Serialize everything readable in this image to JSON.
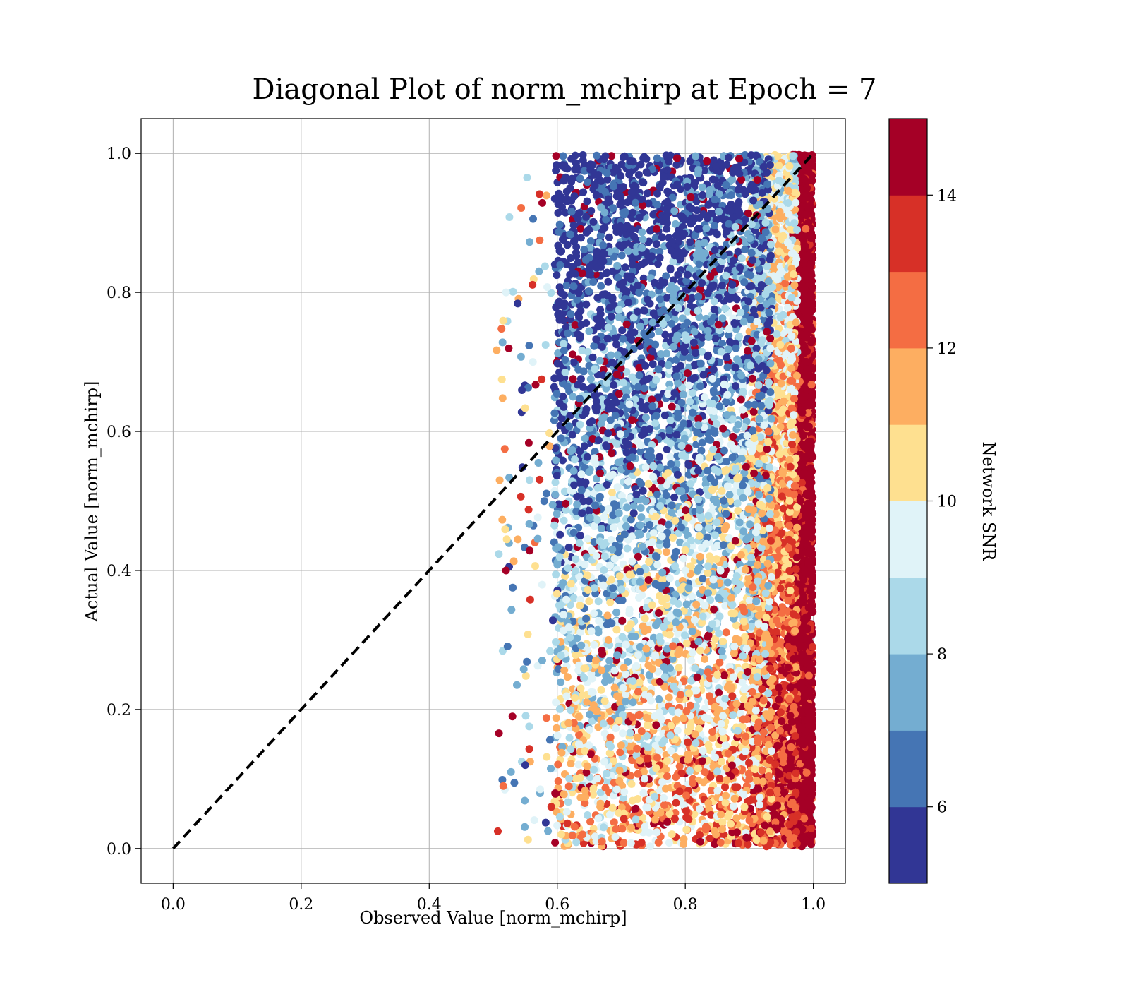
{
  "chart_data": {
    "type": "scatter",
    "title": "Diagonal Plot of norm_mchirp at Epoch = 7",
    "xlabel": "Observed Value [norm_mchirp]",
    "ylabel": "Actual Value [norm_mchirp]",
    "xlim": [
      -0.05,
      1.05
    ],
    "ylim": [
      -0.05,
      1.05
    ],
    "x_ticks": [
      "0.0",
      "0.2",
      "0.4",
      "0.6",
      "0.8",
      "1.0"
    ],
    "y_ticks": [
      "0.0",
      "0.2",
      "0.4",
      "0.6",
      "0.8",
      "1.0"
    ],
    "grid": true,
    "reference_line": {
      "style": "dashed",
      "color": "#000000",
      "from": [
        0.0,
        0.0
      ],
      "to": [
        1.0,
        1.0
      ]
    },
    "colorbar": {
      "label": "Network SNR",
      "range": [
        5,
        15
      ],
      "ticks": [
        "6",
        "8",
        "10",
        "12",
        "14"
      ],
      "levels": [
        {
          "from": 5,
          "to": 6,
          "color": "#313695"
        },
        {
          "from": 6,
          "to": 7,
          "color": "#4575b4"
        },
        {
          "from": 7,
          "to": 8,
          "color": "#74add1"
        },
        {
          "from": 8,
          "to": 9,
          "color": "#abd9e9"
        },
        {
          "from": 9,
          "to": 10,
          "color": "#e0f3f8"
        },
        {
          "from": 10,
          "to": 11,
          "color": "#fee090"
        },
        {
          "from": 11,
          "to": 12,
          "color": "#fdae61"
        },
        {
          "from": 12,
          "to": 13,
          "color": "#f46d43"
        },
        {
          "from": 13,
          "to": 14,
          "color": "#d73027"
        },
        {
          "from": 14,
          "to": 15,
          "color": "#a50026"
        }
      ]
    },
    "point_distribution": {
      "observed_range": [
        0.5,
        1.0
      ],
      "actual_range": [
        0.0,
        1.0
      ],
      "note_points": "dense cluster of high-SNR points at observed 0.97-1.0 over all actual values; lower-SNR points spread over observed 0.6-0.95, high actual values skew low SNR, low actual values skew high SNR"
    },
    "sample_points": [
      {
        "x": 0.99,
        "y": 0.01,
        "snr": 14.5
      },
      {
        "x": 0.98,
        "y": 0.5,
        "snr": 14.5
      },
      {
        "x": 0.99,
        "y": 0.95,
        "snr": 14.5
      },
      {
        "x": 0.62,
        "y": 0.95,
        "snr": 5.5
      },
      {
        "x": 0.65,
        "y": 0.85,
        "snr": 6.5
      },
      {
        "x": 0.7,
        "y": 0.7,
        "snr": 7.5
      },
      {
        "x": 0.75,
        "y": 0.55,
        "snr": 8.5
      },
      {
        "x": 0.8,
        "y": 0.4,
        "snr": 9.5
      },
      {
        "x": 0.85,
        "y": 0.25,
        "snr": 10.5
      },
      {
        "x": 0.9,
        "y": 0.1,
        "snr": 12.5
      },
      {
        "x": 0.53,
        "y": 0.19,
        "snr": 14.5
      },
      {
        "x": 0.52,
        "y": 0.4,
        "snr": 14.5
      },
      {
        "x": 0.51,
        "y": 0.53,
        "snr": 11.5
      },
      {
        "x": 0.52,
        "y": 0.8,
        "snr": 9.5
      },
      {
        "x": 0.55,
        "y": 0.12,
        "snr": 5.5
      },
      {
        "x": 0.67,
        "y": 0.01,
        "snr": 12.5
      },
      {
        "x": 0.68,
        "y": 0.3,
        "snr": 11
      },
      {
        "x": 0.93,
        "y": 0.6,
        "snr": 12
      }
    ]
  }
}
